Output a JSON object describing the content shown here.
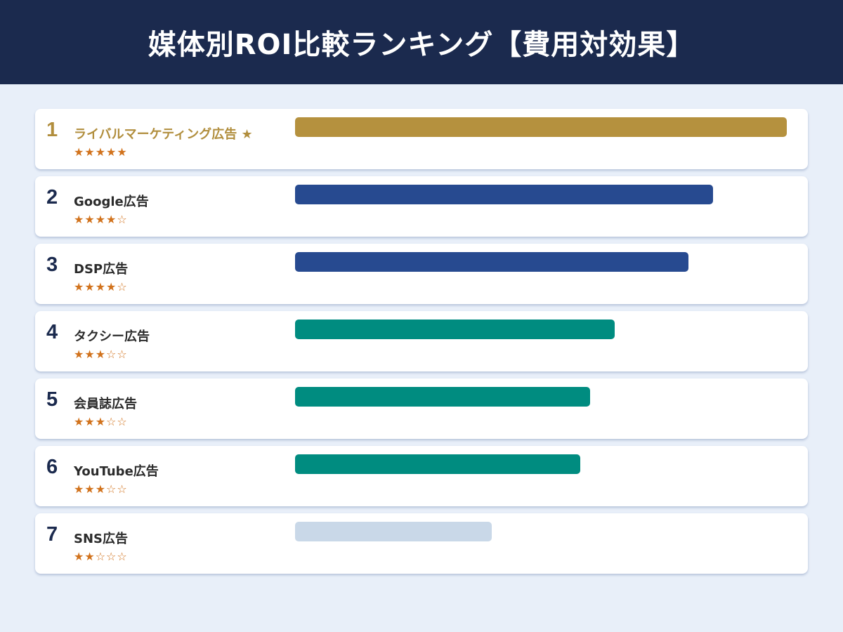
{
  "header": {
    "title": "媒体別ROI比較ランキング【費用対効果】"
  },
  "chart_data": {
    "type": "bar",
    "orientation": "horizontal",
    "title": "媒体別ROI比較ランキング【費用対効果】",
    "xlim": [
      0,
      100
    ],
    "categories": [
      "ライバルマーケティング広告",
      "Google広告",
      "DSP広告",
      "タクシー広告",
      "会員誌広告",
      "YouTube広告",
      "SNS広告"
    ],
    "values": [
      100,
      85,
      80,
      65,
      60,
      58,
      40
    ],
    "rows": [
      {
        "rank": "1",
        "label": "ライバルマーケティング広告 ★",
        "stars": "★★★★★",
        "rating": 5,
        "value": 100,
        "color": "#b5913e"
      },
      {
        "rank": "2",
        "label": "Google広告",
        "stars": "★★★★☆",
        "rating": 4,
        "value": 85,
        "color": "#274a90"
      },
      {
        "rank": "3",
        "label": "DSP広告",
        "stars": "★★★★☆",
        "rating": 4,
        "value": 80,
        "color": "#274a90"
      },
      {
        "rank": "4",
        "label": "タクシー広告",
        "stars": "★★★☆☆",
        "rating": 3,
        "value": 65,
        "color": "#008c80"
      },
      {
        "rank": "5",
        "label": "会員誌広告",
        "stars": "★★★☆☆",
        "rating": 3,
        "value": 60,
        "color": "#008c80"
      },
      {
        "rank": "6",
        "label": "YouTube広告",
        "stars": "★★★☆☆",
        "rating": 3,
        "value": 58,
        "color": "#008c80"
      },
      {
        "rank": "7",
        "label": "SNS広告",
        "stars": "★★☆☆☆",
        "rating": 2,
        "value": 40,
        "color": "#c9d8e8"
      }
    ]
  }
}
